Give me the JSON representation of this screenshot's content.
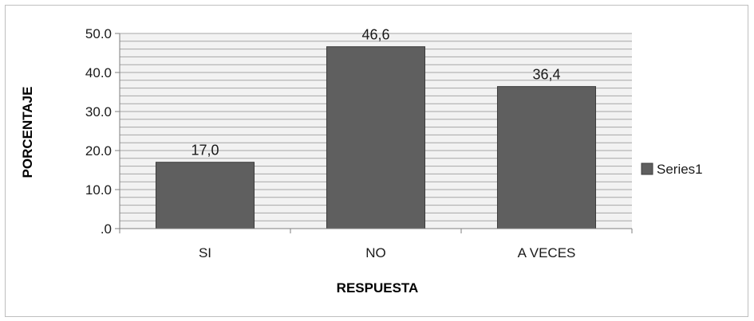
{
  "chart_data": {
    "type": "bar",
    "categories": [
      "SI",
      "NO",
      "A VECES"
    ],
    "series": [
      {
        "name": "Series1",
        "values": [
          17.0,
          46.6,
          36.4
        ],
        "data_labels": [
          "17,0",
          "46,6",
          "36,4"
        ]
      }
    ],
    "title": "",
    "xlabel": "RESPUESTA",
    "ylabel": "PORCENTAJE",
    "ylim": [
      0,
      50
    ],
    "yticks": [
      ".0",
      "10.0",
      "20.0",
      "30.0",
      "40.0",
      "50.0"
    ],
    "grid": true,
    "legend_position": "right",
    "colors": {
      "bar": "#5f5f5f",
      "bar_border": "#3c3c3c",
      "grid": "#a6a6a6",
      "plot_bg": "#f2f2f2"
    }
  }
}
